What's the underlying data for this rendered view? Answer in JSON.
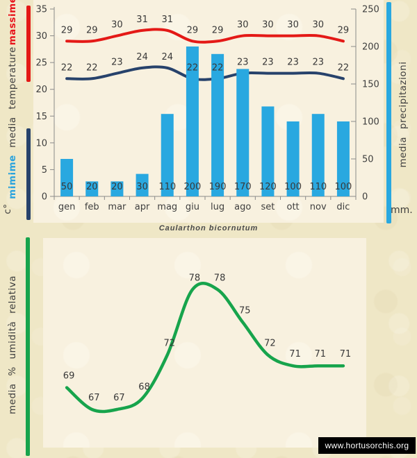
{
  "caption": "Caularthon bicornutum",
  "footer": {
    "url": "www.hortusorchis.org"
  },
  "labels": {
    "massime": "massime",
    "media_temperature": "media temperature",
    "mimime": "mimime",
    "celsius": "c°",
    "media_precipitazioni": "media precipitazioni",
    "mm": "mm.",
    "umidita": "media % umidità relativa"
  },
  "colors": {
    "page_bg": "#efe7c6",
    "panel_bg": "#f8f1df",
    "massime_red": "#e41916",
    "minime_navy": "#27426b",
    "precip_cyan": "#29a8e0",
    "humidity_green": "#17a44c",
    "text": "#3e3e3e",
    "axis": "#8a8a8a"
  },
  "chart_data": [
    {
      "type": "bar",
      "title": "",
      "categories": [
        "gen",
        "feb",
        "mar",
        "apr",
        "mag",
        "giu",
        "lug",
        "ago",
        "set",
        "ott",
        "nov",
        "dic"
      ],
      "series": [
        {
          "name": "massime",
          "type": "line",
          "axis": "left",
          "color": "#e41916",
          "values": [
            29,
            29,
            30,
            31,
            31,
            29,
            29,
            30,
            30,
            30,
            30,
            29
          ]
        },
        {
          "name": "mimime",
          "type": "line",
          "axis": "left",
          "color": "#27426b",
          "values": [
            22,
            22,
            23,
            24,
            24,
            22,
            22,
            23,
            23,
            23,
            23,
            22
          ]
        },
        {
          "name": "media precipitazioni",
          "type": "bar",
          "axis": "right",
          "color": "#29a8e0",
          "values": [
            50,
            20,
            20,
            30,
            110,
            200,
            190,
            170,
            120,
            100,
            110,
            100
          ]
        }
      ],
      "left_axis": {
        "label": "media temperature (c°)",
        "min": 0,
        "max": 35,
        "step": 5,
        "ticks": [
          0,
          5,
          10,
          15,
          20,
          25,
          30,
          35
        ]
      },
      "right_axis": {
        "label": "media precipitazioni (mm.)",
        "min": 0,
        "max": 250,
        "step": 50,
        "ticks": [
          0,
          50,
          100,
          150,
          200,
          250
        ]
      },
      "legend_position": "side-vertical-labels",
      "grid": false
    },
    {
      "type": "line",
      "title": "Caularthon bicornutum",
      "categories": [
        "gen",
        "feb",
        "mar",
        "apr",
        "mag",
        "giu",
        "lug",
        "ago",
        "set",
        "ott",
        "nov",
        "dic"
      ],
      "x_labels_hidden": true,
      "series": [
        {
          "name": "media % umidità relativa",
          "type": "line",
          "color": "#17a44c",
          "values": [
            69,
            67,
            67,
            68,
            72,
            78,
            78,
            75,
            72,
            71,
            71,
            71
          ]
        }
      ],
      "ylim": [
        66,
        80
      ],
      "grid": false,
      "axes_hidden": true
    }
  ]
}
